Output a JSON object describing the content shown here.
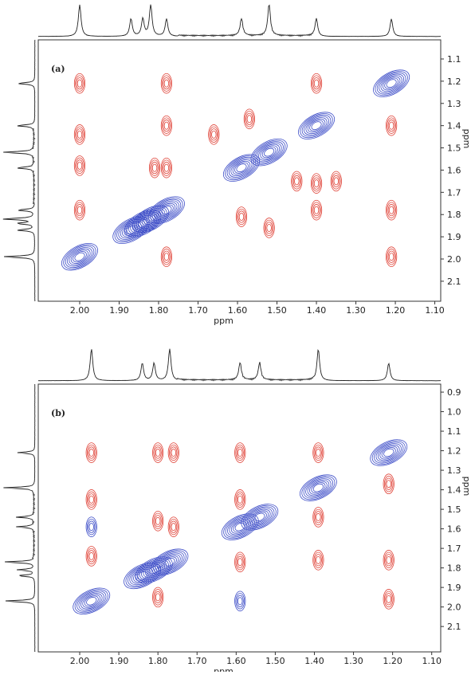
{
  "chart_data": [
    {
      "type": "contour",
      "label": "(a)",
      "xlabel": "ppm",
      "ylabel": "ppm",
      "xlim": [
        2.105,
        1.085
      ],
      "ylim": [
        1.014,
        2.19
      ],
      "xticks": [
        {
          "value": 2.0,
          "label": "2.00"
        },
        {
          "value": 1.9,
          "label": "1.90"
        },
        {
          "value": 1.8,
          "label": "1.80"
        },
        {
          "value": 1.7,
          "label": "1.70"
        },
        {
          "value": 1.6,
          "label": "1.60"
        },
        {
          "value": 1.5,
          "label": "1.50"
        },
        {
          "value": 1.4,
          "label": "1.40"
        },
        {
          "value": 1.3,
          "label": "1.30"
        },
        {
          "value": 1.2,
          "label": "1.20"
        },
        {
          "value": 1.1,
          "label": "1.10"
        }
      ],
      "yticks": [
        1.1,
        1.2,
        1.3,
        1.4,
        1.5,
        1.6,
        1.7,
        1.8,
        1.9,
        {
          "value": 2.0,
          "label": "2.0"
        },
        2.1
      ],
      "series": [
        {
          "color": "#3f4fc8",
          "diagonal": true,
          "x": [
            2.0,
            1.87,
            1.84,
            1.82,
            1.78,
            1.59,
            1.52,
            1.4,
            1.21
          ],
          "y": [
            1.99,
            1.87,
            1.84,
            1.82,
            1.78,
            1.59,
            1.52,
            1.4,
            1.21
          ]
        },
        {
          "color": "#e0453a",
          "diagonal": false,
          "x": [
            2.0,
            2.0,
            2.0,
            2.0,
            1.78,
            1.78,
            1.78,
            1.78,
            1.21,
            1.21,
            1.21,
            1.4,
            1.4,
            1.4,
            1.59,
            1.52,
            1.81,
            1.66,
            1.45,
            1.35,
            1.57
          ],
          "y": [
            1.21,
            1.44,
            1.58,
            1.78,
            1.21,
            1.4,
            1.59,
            1.99,
            1.99,
            1.78,
            1.4,
            1.21,
            1.66,
            1.78,
            1.81,
            1.86,
            1.59,
            1.44,
            1.65,
            1.65,
            1.37
          ]
        }
      ]
    },
    {
      "type": "contour",
      "label": "(b)",
      "xlabel": "ppm",
      "ylabel": "ppm",
      "xlim": [
        2.106,
        1.077
      ],
      "ylim": [
        0.859,
        2.23
      ],
      "xticks": [
        {
          "value": 2.0,
          "label": "2.00"
        },
        {
          "value": 1.9,
          "label": "1.90"
        },
        {
          "value": 1.8,
          "label": "1.80"
        },
        {
          "value": 1.7,
          "label": "1.70"
        },
        {
          "value": 1.6,
          "label": "1.60"
        },
        {
          "value": 1.5,
          "label": "1.50"
        },
        {
          "value": 1.4,
          "label": "1.40"
        },
        {
          "value": 1.3,
          "label": "1.30"
        },
        {
          "value": 1.2,
          "label": "1.20"
        },
        {
          "value": 1.1,
          "label": "1.10"
        }
      ],
      "yticks": [
        0.9,
        {
          "value": 1.0,
          "label": "1.0"
        },
        1.1,
        1.2,
        1.3,
        1.4,
        1.5,
        1.6,
        1.7,
        1.8,
        1.9,
        {
          "value": 2.0,
          "label": "2.0"
        },
        2.1
      ],
      "series": [
        {
          "color": "#3f4fc8",
          "diagonal": true,
          "x": [
            1.97,
            1.84,
            1.81,
            1.77,
            1.59,
            1.54,
            1.39,
            1.21
          ],
          "y": [
            1.97,
            1.84,
            1.81,
            1.77,
            1.59,
            1.54,
            1.39,
            1.21
          ]
        },
        {
          "color": "#3f4fc8",
          "diagonal": false,
          "x": [
            1.97,
            1.59
          ],
          "y": [
            1.59,
            1.97
          ]
        },
        {
          "color": "#e0453a",
          "diagonal": false,
          "x": [
            1.97,
            1.97,
            1.97,
            1.8,
            1.8,
            1.8,
            1.59,
            1.59,
            1.59,
            1.39,
            1.39,
            1.39,
            1.21,
            1.21,
            1.21,
            1.76,
            1.76
          ],
          "y": [
            1.21,
            1.45,
            1.74,
            1.21,
            1.56,
            1.95,
            1.21,
            1.45,
            1.77,
            1.21,
            1.54,
            1.76,
            1.37,
            1.76,
            1.96,
            1.21,
            1.59
          ]
        }
      ]
    }
  ]
}
